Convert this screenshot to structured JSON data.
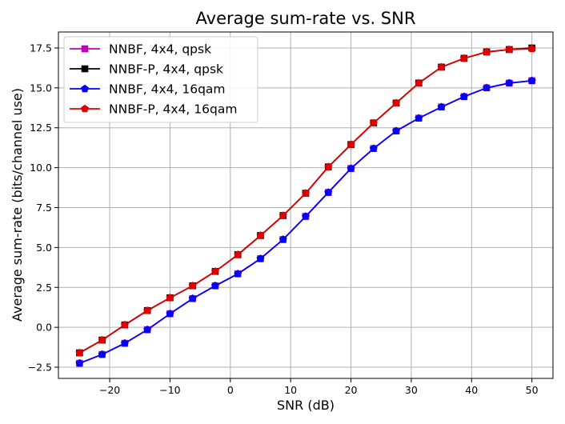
{
  "chart_data": {
    "type": "line",
    "title": "Average sum-rate vs. SNR",
    "xlabel": "SNR (dB)",
    "ylabel": "Average sum-rate (bits/channel use)",
    "xlim": [
      -28.5,
      53.5
    ],
    "ylim": [
      -3.2,
      18.5
    ],
    "xticks": [
      -20,
      -10,
      0,
      10,
      20,
      30,
      40,
      50
    ],
    "xtick_labels": [
      "−20",
      "−10",
      "0",
      "10",
      "20",
      "30",
      "40",
      "50"
    ],
    "yticks": [
      -2.5,
      0.0,
      2.5,
      5.0,
      7.5,
      10.0,
      12.5,
      15.0,
      17.5
    ],
    "ytick_labels": [
      "−2.5",
      "0.0",
      "2.5",
      "5.0",
      "7.5",
      "10.0",
      "12.5",
      "15.0",
      "17.5"
    ],
    "grid": true,
    "legend_position": "upper-left",
    "x": [
      -25,
      -21.25,
      -17.5,
      -13.75,
      -10,
      -6.25,
      -2.5,
      1.25,
      5,
      8.75,
      12.5,
      16.25,
      20,
      23.75,
      27.5,
      31.25,
      35,
      38.75,
      42.5,
      46.25,
      50
    ],
    "series": [
      {
        "name": "NNBF, 4x4, qpsk",
        "color": "#bf00bf",
        "marker": "square",
        "values": [
          -2.25,
          -1.7,
          -1.0,
          -0.15,
          0.85,
          1.8,
          2.6,
          3.35,
          4.3,
          5.5,
          6.95,
          8.45,
          9.95,
          11.2,
          12.3,
          13.1,
          13.8,
          14.45,
          15.0,
          15.3,
          15.45
        ]
      },
      {
        "name": "NNBF-P, 4x4, qpsk",
        "color": "#000000",
        "marker": "square",
        "values": [
          -1.6,
          -0.8,
          0.15,
          1.05,
          1.85,
          2.6,
          3.5,
          4.55,
          5.75,
          7.0,
          8.4,
          10.05,
          11.45,
          12.8,
          14.05,
          15.3,
          16.3,
          16.85,
          17.25,
          17.4,
          17.5
        ]
      },
      {
        "name": "NNBF, 4x4, 16qam",
        "color": "#0000ff",
        "marker": "pentagon",
        "values": [
          -2.25,
          -1.7,
          -1.0,
          -0.15,
          0.85,
          1.8,
          2.6,
          3.35,
          4.3,
          5.5,
          6.95,
          8.45,
          9.95,
          11.2,
          12.3,
          13.1,
          13.8,
          14.45,
          15.0,
          15.3,
          15.45
        ]
      },
      {
        "name": "NNBF-P, 4x4, 16qam",
        "color": "#e00000",
        "marker": "pentagon",
        "values": [
          -1.6,
          -0.8,
          0.15,
          1.05,
          1.85,
          2.6,
          3.5,
          4.55,
          5.75,
          7.0,
          8.4,
          10.05,
          11.45,
          12.8,
          14.05,
          15.3,
          16.3,
          16.85,
          17.25,
          17.4,
          17.45
        ]
      }
    ]
  }
}
